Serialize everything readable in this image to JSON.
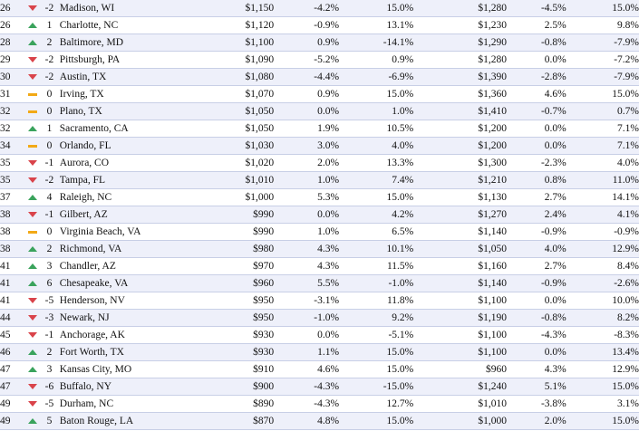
{
  "colors": {
    "up": "#3aa35c",
    "down": "#d9434a",
    "flat": "#f2a916",
    "stripe": "#eef0fa"
  },
  "rows": [
    {
      "rank": "26",
      "trend": "down",
      "change": "-2",
      "city": "Madison, WI",
      "rent_1br": "$1,150",
      "mom_1br": "-4.2%",
      "yoy_1br": "15.0%",
      "rent_2br": "$1,280",
      "mom_2br": "-4.5%",
      "yoy_2br": "15.0%"
    },
    {
      "rank": "26",
      "trend": "up",
      "change": "1",
      "city": "Charlotte, NC",
      "rent_1br": "$1,120",
      "mom_1br": "-0.9%",
      "yoy_1br": "13.1%",
      "rent_2br": "$1,230",
      "mom_2br": "2.5%",
      "yoy_2br": "9.8%"
    },
    {
      "rank": "28",
      "trend": "up",
      "change": "2",
      "city": "Baltimore, MD",
      "rent_1br": "$1,100",
      "mom_1br": "0.9%",
      "yoy_1br": "-14.1%",
      "rent_2br": "$1,290",
      "mom_2br": "-0.8%",
      "yoy_2br": "-7.9%"
    },
    {
      "rank": "29",
      "trend": "down",
      "change": "-2",
      "city": "Pittsburgh, PA",
      "rent_1br": "$1,090",
      "mom_1br": "-5.2%",
      "yoy_1br": "0.9%",
      "rent_2br": "$1,280",
      "mom_2br": "0.0%",
      "yoy_2br": "-7.2%"
    },
    {
      "rank": "30",
      "trend": "down",
      "change": "-2",
      "city": "Austin, TX",
      "rent_1br": "$1,080",
      "mom_1br": "-4.4%",
      "yoy_1br": "-6.9%",
      "rent_2br": "$1,390",
      "mom_2br": "-2.8%",
      "yoy_2br": "-7.9%"
    },
    {
      "rank": "31",
      "trend": "flat",
      "change": "0",
      "city": "Irving, TX",
      "rent_1br": "$1,070",
      "mom_1br": "0.9%",
      "yoy_1br": "15.0%",
      "rent_2br": "$1,360",
      "mom_2br": "4.6%",
      "yoy_2br": "15.0%"
    },
    {
      "rank": "32",
      "trend": "flat",
      "change": "0",
      "city": "Plano, TX",
      "rent_1br": "$1,050",
      "mom_1br": "0.0%",
      "yoy_1br": "1.0%",
      "rent_2br": "$1,410",
      "mom_2br": "-0.7%",
      "yoy_2br": "0.7%"
    },
    {
      "rank": "32",
      "trend": "up",
      "change": "1",
      "city": "Sacramento, CA",
      "rent_1br": "$1,050",
      "mom_1br": "1.9%",
      "yoy_1br": "10.5%",
      "rent_2br": "$1,200",
      "mom_2br": "0.0%",
      "yoy_2br": "7.1%"
    },
    {
      "rank": "34",
      "trend": "flat",
      "change": "0",
      "city": "Orlando, FL",
      "rent_1br": "$1,030",
      "mom_1br": "3.0%",
      "yoy_1br": "4.0%",
      "rent_2br": "$1,200",
      "mom_2br": "0.0%",
      "yoy_2br": "7.1%"
    },
    {
      "rank": "35",
      "trend": "down",
      "change": "-1",
      "city": "Aurora, CO",
      "rent_1br": "$1,020",
      "mom_1br": "2.0%",
      "yoy_1br": "13.3%",
      "rent_2br": "$1,300",
      "mom_2br": "-2.3%",
      "yoy_2br": "4.0%"
    },
    {
      "rank": "35",
      "trend": "down",
      "change": "-2",
      "city": "Tampa, FL",
      "rent_1br": "$1,010",
      "mom_1br": "1.0%",
      "yoy_1br": "7.4%",
      "rent_2br": "$1,210",
      "mom_2br": "0.8%",
      "yoy_2br": "11.0%"
    },
    {
      "rank": "37",
      "trend": "up",
      "change": "4",
      "city": "Raleigh, NC",
      "rent_1br": "$1,000",
      "mom_1br": "5.3%",
      "yoy_1br": "15.0%",
      "rent_2br": "$1,130",
      "mom_2br": "2.7%",
      "yoy_2br": "14.1%"
    },
    {
      "rank": "38",
      "trend": "down",
      "change": "-1",
      "city": "Gilbert, AZ",
      "rent_1br": "$990",
      "mom_1br": "0.0%",
      "yoy_1br": "4.2%",
      "rent_2br": "$1,270",
      "mom_2br": "2.4%",
      "yoy_2br": "4.1%"
    },
    {
      "rank": "38",
      "trend": "flat",
      "change": "0",
      "city": "Virginia Beach, VA",
      "rent_1br": "$990",
      "mom_1br": "1.0%",
      "yoy_1br": "6.5%",
      "rent_2br": "$1,140",
      "mom_2br": "-0.9%",
      "yoy_2br": "-0.9%"
    },
    {
      "rank": "38",
      "trend": "up",
      "change": "2",
      "city": "Richmond, VA",
      "rent_1br": "$980",
      "mom_1br": "4.3%",
      "yoy_1br": "10.1%",
      "rent_2br": "$1,050",
      "mom_2br": "4.0%",
      "yoy_2br": "12.9%"
    },
    {
      "rank": "41",
      "trend": "up",
      "change": "3",
      "city": "Chandler, AZ",
      "rent_1br": "$970",
      "mom_1br": "4.3%",
      "yoy_1br": "11.5%",
      "rent_2br": "$1,160",
      "mom_2br": "2.7%",
      "yoy_2br": "8.4%"
    },
    {
      "rank": "41",
      "trend": "up",
      "change": "6",
      "city": "Chesapeake, VA",
      "rent_1br": "$960",
      "mom_1br": "5.5%",
      "yoy_1br": "-1.0%",
      "rent_2br": "$1,140",
      "mom_2br": "-0.9%",
      "yoy_2br": "-2.6%"
    },
    {
      "rank": "41",
      "trend": "down",
      "change": "-5",
      "city": "Henderson, NV",
      "rent_1br": "$950",
      "mom_1br": "-3.1%",
      "yoy_1br": "11.8%",
      "rent_2br": "$1,100",
      "mom_2br": "0.0%",
      "yoy_2br": "10.0%"
    },
    {
      "rank": "44",
      "trend": "down",
      "change": "-3",
      "city": "Newark, NJ",
      "rent_1br": "$950",
      "mom_1br": "-1.0%",
      "yoy_1br": "9.2%",
      "rent_2br": "$1,190",
      "mom_2br": "-0.8%",
      "yoy_2br": "8.2%"
    },
    {
      "rank": "45",
      "trend": "down",
      "change": "-1",
      "city": "Anchorage, AK",
      "rent_1br": "$930",
      "mom_1br": "0.0%",
      "yoy_1br": "-5.1%",
      "rent_2br": "$1,100",
      "mom_2br": "-4.3%",
      "yoy_2br": "-8.3%"
    },
    {
      "rank": "46",
      "trend": "up",
      "change": "2",
      "city": "Fort Worth, TX",
      "rent_1br": "$930",
      "mom_1br": "1.1%",
      "yoy_1br": "15.0%",
      "rent_2br": "$1,100",
      "mom_2br": "0.0%",
      "yoy_2br": "13.4%"
    },
    {
      "rank": "47",
      "trend": "up",
      "change": "3",
      "city": "Kansas City, MO",
      "rent_1br": "$910",
      "mom_1br": "4.6%",
      "yoy_1br": "15.0%",
      "rent_2br": "$960",
      "mom_2br": "4.3%",
      "yoy_2br": "12.9%"
    },
    {
      "rank": "47",
      "trend": "down",
      "change": "-6",
      "city": "Buffalo, NY",
      "rent_1br": "$900",
      "mom_1br": "-4.3%",
      "yoy_1br": "-15.0%",
      "rent_2br": "$1,240",
      "mom_2br": "5.1%",
      "yoy_2br": "15.0%"
    },
    {
      "rank": "49",
      "trend": "down",
      "change": "-5",
      "city": "Durham, NC",
      "rent_1br": "$890",
      "mom_1br": "-4.3%",
      "yoy_1br": "12.7%",
      "rent_2br": "$1,010",
      "mom_2br": "-3.8%",
      "yoy_2br": "3.1%"
    },
    {
      "rank": "49",
      "trend": "up",
      "change": "5",
      "city": "Baton Rouge, LA",
      "rent_1br": "$870",
      "mom_1br": "4.8%",
      "yoy_1br": "15.0%",
      "rent_2br": "$1,000",
      "mom_2br": "2.0%",
      "yoy_2br": "15.0%"
    }
  ]
}
